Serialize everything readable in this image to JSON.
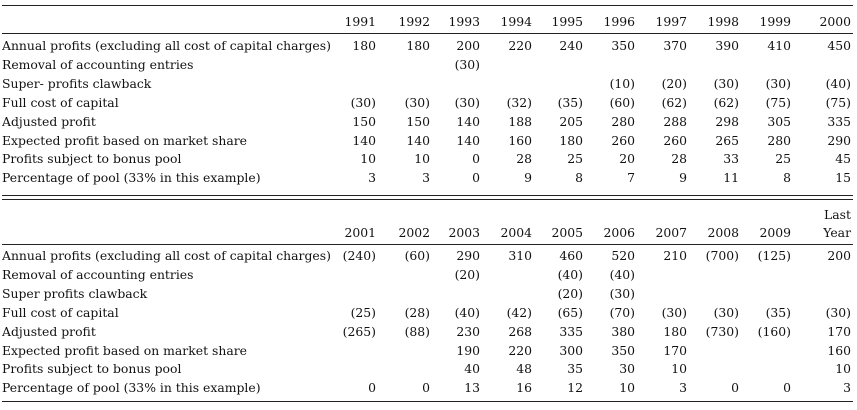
{
  "table1": {
    "years": [
      "1991",
      "1992",
      "1993",
      "1994",
      "1995",
      "1996",
      "1997",
      "1998",
      "1999",
      "2000"
    ],
    "rows": [
      {
        "label": "Annual profits (excluding all cost of capital charges)",
        "values": [
          "180",
          "180",
          "200",
          "220",
          "240",
          "350",
          "370",
          "390",
          "410",
          "450"
        ]
      },
      {
        "label": "Removal of accounting entries",
        "values": [
          "",
          "",
          "(30)",
          "",
          "",
          "",
          "",
          "",
          "",
          ""
        ]
      },
      {
        "label": "Super- profits clawback",
        "values": [
          "",
          "",
          "",
          "",
          "",
          "(10)",
          "(20)",
          "(30)",
          "(30)",
          "(40)"
        ]
      },
      {
        "label": "Full cost of capital",
        "values": [
          "(30)",
          "(30)",
          "(30)",
          "(32)",
          "(35)",
          "(60)",
          "(62)",
          "(62)",
          "(75)",
          "(75)"
        ]
      },
      {
        "label": "Adjusted profit",
        "values": [
          "150",
          "150",
          "140",
          "188",
          "205",
          "280",
          "288",
          "298",
          "305",
          "335"
        ]
      },
      {
        "label": "Expected profit based on market share",
        "values": [
          "140",
          "140",
          "140",
          "160",
          "180",
          "260",
          "260",
          "265",
          "280",
          "290"
        ]
      },
      {
        "label": "Profits subject to bonus pool",
        "values": [
          "10",
          "10",
          "0",
          "28",
          "25",
          "20",
          "28",
          "33",
          "25",
          "45"
        ]
      },
      {
        "label": "Percentage of pool (33% in this example)",
        "values": [
          "3",
          "3",
          "0",
          "9",
          "8",
          "7",
          "9",
          "11",
          "8",
          "15"
        ]
      }
    ]
  },
  "table2": {
    "years": [
      "2001",
      "2002",
      "2003",
      "2004",
      "2005",
      "2006",
      "2007",
      "2008",
      "2009",
      "Last Year"
    ],
    "rows": [
      {
        "label": "Annual profits (excluding all cost of capital charges)",
        "values": [
          "(240)",
          "(60)",
          "290",
          "310",
          "460",
          "520",
          "210",
          "(700)",
          "(125)",
          "200"
        ]
      },
      {
        "label": "Removal of accounting entries",
        "values": [
          "",
          "",
          "(20)",
          "",
          "(40)",
          "(40)",
          "",
          "",
          "",
          ""
        ]
      },
      {
        "label": "Super profits clawback",
        "values": [
          "",
          "",
          "",
          "",
          "(20)",
          "(30)",
          "",
          "",
          "",
          ""
        ]
      },
      {
        "label": "Full cost of capital",
        "values": [
          "(25)",
          "(28)",
          "(40)",
          "(42)",
          "(65)",
          "(70)",
          "(30)",
          "(30)",
          "(35)",
          "(30)"
        ]
      },
      {
        "label": "Adjusted profit",
        "values": [
          "(265)",
          "(88)",
          "230",
          "268",
          "335",
          "380",
          "180",
          "(730)",
          "(160)",
          "170"
        ]
      },
      {
        "label": "Expected profit based on market share",
        "values": [
          "",
          "",
          "190",
          "220",
          "300",
          "350",
          "170",
          "",
          "",
          "160"
        ]
      },
      {
        "label": "Profits subject to bonus pool",
        "values": [
          "",
          "",
          "40",
          "48",
          "35",
          "30",
          "10",
          "",
          "",
          "10"
        ]
      },
      {
        "label": "Percentage of pool (33% in this example)",
        "values": [
          "0",
          "0",
          "13",
          "16",
          "12",
          "10",
          "3",
          "0",
          "0",
          "3"
        ]
      }
    ]
  }
}
